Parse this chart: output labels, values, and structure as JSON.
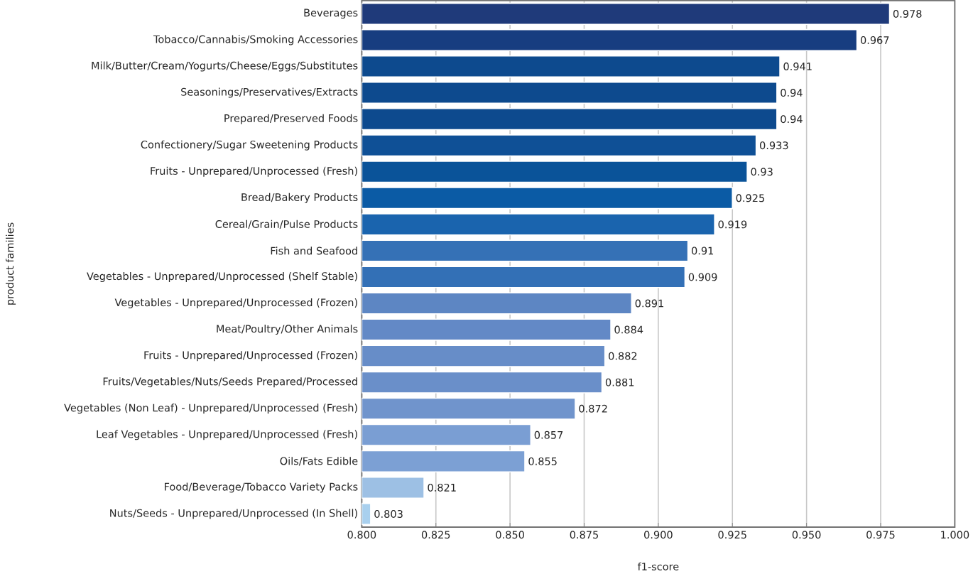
{
  "chart_data": {
    "type": "bar",
    "orientation": "horizontal",
    "xlabel": "f1-score",
    "ylabel": "product families",
    "categories": [
      "Beverages",
      "Tobacco/Cannabis/Smoking Accessories",
      "Milk/Butter/Cream/Yogurts/Cheese/Eggs/Substitutes",
      "Seasonings/Preservatives/Extracts",
      "Prepared/Preserved Foods",
      "Confectionery/Sugar Sweetening Products",
      "Fruits - Unprepared/Unprocessed (Fresh)",
      "Bread/Bakery Products",
      "Cereal/Grain/Pulse Products",
      "Fish and Seafood",
      "Vegetables - Unprepared/Unprocessed (Shelf Stable)",
      "Vegetables - Unprepared/Unprocessed (Frozen)",
      "Meat/Poultry/Other Animals",
      "Fruits - Unprepared/Unprocessed (Frozen)",
      "Fruits/Vegetables/Nuts/Seeds Prepared/Processed",
      "Vegetables (Non Leaf) - Unprepared/Unprocessed (Fresh)",
      "Leaf Vegetables - Unprepared/Unprocessed (Fresh)",
      "Oils/Fats Edible",
      "Food/Beverage/Tobacco Variety Packs",
      "Nuts/Seeds - Unprepared/Unprocessed (In Shell)"
    ],
    "values": [
      0.978,
      0.967,
      0.941,
      0.94,
      0.94,
      0.933,
      0.93,
      0.925,
      0.919,
      0.91,
      0.909,
      0.891,
      0.884,
      0.882,
      0.881,
      0.872,
      0.857,
      0.855,
      0.821,
      0.803
    ],
    "colors": [
      "#1f3a7a",
      "#173d80",
      "#0d4a8e",
      "#0d4a8e",
      "#0d4a8e",
      "#0f5096",
      "#0a5399",
      "#0b5ba5",
      "#1a64ae",
      "#3571b6",
      "#3370b6",
      "#5d86c3",
      "#6389c6",
      "#678dc8",
      "#6a8fc9",
      "#7094cc",
      "#7a9ed3",
      "#7ca0d4",
      "#9dc0e4",
      "#a9d0ee"
    ],
    "data_labels": true,
    "xlim": [
      0.8,
      1.0
    ],
    "xticks": [
      {
        "value": 0.8,
        "label": "0.800"
      },
      {
        "value": 0.825,
        "label": "0.825"
      },
      {
        "value": 0.85,
        "label": "0.850"
      },
      {
        "value": 0.875,
        "label": "0.875"
      },
      {
        "value": 0.9,
        "label": "0.900"
      },
      {
        "value": 0.925,
        "label": "0.925"
      },
      {
        "value": 0.95,
        "label": "0.950"
      },
      {
        "value": 0.975,
        "label": "0.975"
      },
      {
        "value": 1.0,
        "label": "1.000"
      }
    ],
    "grid": "x"
  }
}
